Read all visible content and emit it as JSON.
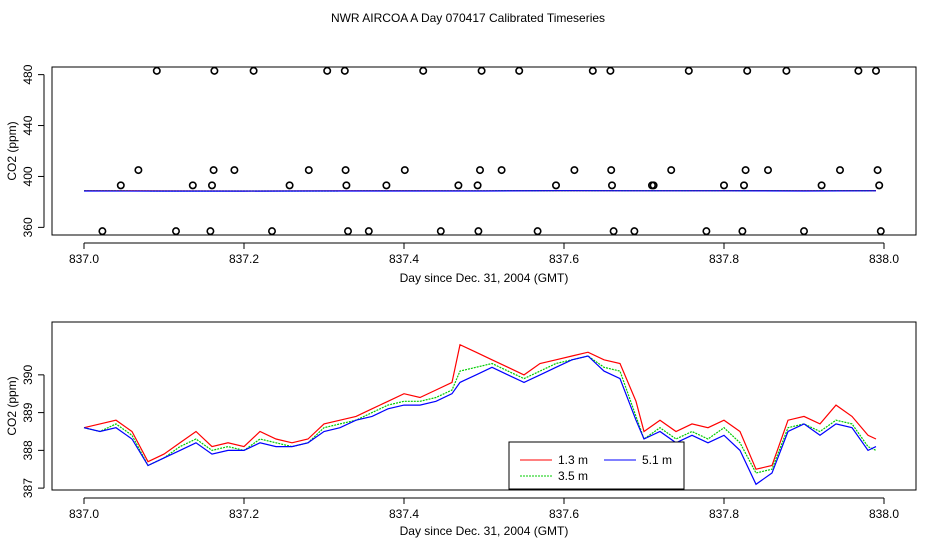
{
  "page_title": "NWR AIRCOA A  Day 070417  Calibrated Timeseries",
  "chart_data": [
    {
      "type": "scatter",
      "title": "NWR AIRCOA A  Day 070417  Calibrated Timeseries",
      "xlabel": "Day since Dec. 31, 2004 (GMT)",
      "ylabel": "CO2 (ppm)",
      "xlim": [
        836.96,
        838.04
      ],
      "ylim": [
        354,
        486
      ],
      "xticks": [
        837.0,
        837.2,
        837.4,
        837.6,
        837.8,
        838.0
      ],
      "xtick_labels": [
        "837.0",
        "837.2",
        "837.4",
        "837.6",
        "837.8",
        "838.0"
      ],
      "yticks": [
        360,
        400,
        440,
        480
      ],
      "ytick_labels": [
        "360",
        "400",
        "440",
        "480"
      ],
      "points": [
        [
          837.023,
          357
        ],
        [
          837.046,
          393
        ],
        [
          837.068,
          405
        ],
        [
          837.091,
          483
        ],
        [
          837.115,
          357
        ],
        [
          837.136,
          393
        ],
        [
          837.158,
          357
        ],
        [
          837.16,
          393
        ],
        [
          837.162,
          405
        ],
        [
          837.163,
          483
        ],
        [
          837.188,
          405
        ],
        [
          837.212,
          483
        ],
        [
          837.235,
          357
        ],
        [
          837.257,
          393
        ],
        [
          837.281,
          405
        ],
        [
          837.304,
          483
        ],
        [
          837.326,
          483
        ],
        [
          837.327,
          405
        ],
        [
          837.328,
          393
        ],
        [
          837.33,
          357
        ],
        [
          837.356,
          357
        ],
        [
          837.378,
          393
        ],
        [
          837.401,
          405
        ],
        [
          837.424,
          483
        ],
        [
          837.446,
          357
        ],
        [
          837.468,
          393
        ],
        [
          837.492,
          393
        ],
        [
          837.493,
          357
        ],
        [
          837.495,
          405
        ],
        [
          837.497,
          483
        ],
        [
          837.522,
          405
        ],
        [
          837.544,
          483
        ],
        [
          837.567,
          357
        ],
        [
          837.59,
          393
        ],
        [
          837.613,
          405
        ],
        [
          837.636,
          483
        ],
        [
          837.658,
          483
        ],
        [
          837.659,
          405
        ],
        [
          837.66,
          393
        ],
        [
          837.662,
          357
        ],
        [
          837.688,
          357
        ],
        [
          837.71,
          393
        ],
        [
          837.712,
          393
        ],
        [
          837.734,
          405
        ],
        [
          837.756,
          483
        ],
        [
          837.778,
          357
        ],
        [
          837.8,
          393
        ],
        [
          837.823,
          357
        ],
        [
          837.825,
          393
        ],
        [
          837.827,
          405
        ],
        [
          837.829,
          483
        ],
        [
          837.855,
          405
        ],
        [
          837.878,
          483
        ],
        [
          837.9,
          357
        ],
        [
          837.922,
          393
        ],
        [
          837.945,
          405
        ],
        [
          837.968,
          483
        ],
        [
          837.99,
          483
        ],
        [
          837.992,
          405
        ],
        [
          837.994,
          393
        ],
        [
          837.996,
          357
        ]
      ],
      "series": [
        {
          "name": "1.3 m",
          "color": "#ff0000",
          "values": [
            388.8,
            388.7,
            388.6,
            388.7,
            388.8,
            388.7,
            388.9,
            388.8,
            388.9,
            388.8,
            388.9
          ]
        },
        {
          "name": "3.5 m",
          "color": "#00cc00",
          "values": [
            388.7,
            388.6,
            388.6,
            388.6,
            388.7,
            388.7,
            388.8,
            388.8,
            388.8,
            388.7,
            388.8
          ]
        },
        {
          "name": "5.1 m",
          "color": "#0000ff",
          "values": [
            388.6,
            388.5,
            388.5,
            388.6,
            388.6,
            388.6,
            388.8,
            388.7,
            388.7,
            388.6,
            388.7
          ]
        }
      ],
      "series_x": [
        837.0,
        837.1,
        837.2,
        837.3,
        837.4,
        837.5,
        837.6,
        837.7,
        837.8,
        837.9,
        837.99
      ]
    },
    {
      "type": "line",
      "title": "",
      "xlabel": "Day since Dec. 31, 2004 (GMT)",
      "ylabel": "CO2 (ppm)",
      "xlim": [
        836.96,
        838.04
      ],
      "ylim": [
        386.95,
        391.4
      ],
      "xticks": [
        837.0,
        837.2,
        837.4,
        837.6,
        837.8,
        838.0
      ],
      "xtick_labels": [
        "837.0",
        "837.2",
        "837.4",
        "837.6",
        "837.8",
        "838.0"
      ],
      "yticks": [
        387,
        388,
        389,
        390
      ],
      "ytick_labels": [
        "387",
        "388",
        "389",
        "390"
      ],
      "legend": {
        "position": "bottom-center",
        "entries": [
          "1.3 m",
          "3.5 m",
          "5.1 m"
        ]
      },
      "x": [
        837.0,
        837.02,
        837.04,
        837.06,
        837.08,
        837.1,
        837.12,
        837.14,
        837.16,
        837.18,
        837.2,
        837.22,
        837.24,
        837.26,
        837.28,
        837.3,
        837.32,
        837.34,
        837.36,
        837.38,
        837.4,
        837.42,
        837.44,
        837.46,
        837.47,
        837.49,
        837.51,
        837.53,
        837.55,
        837.57,
        837.59,
        837.61,
        837.63,
        837.65,
        837.67,
        837.69,
        837.7,
        837.72,
        837.74,
        837.76,
        837.78,
        837.8,
        837.82,
        837.84,
        837.86,
        837.88,
        837.9,
        837.92,
        837.94,
        837.96,
        837.98,
        837.99
      ],
      "series": [
        {
          "name": "1.3 m",
          "color": "#ff0000",
          "values": [
            388.6,
            388.7,
            388.8,
            388.5,
            387.7,
            387.9,
            388.2,
            388.5,
            388.1,
            388.2,
            388.1,
            388.5,
            388.3,
            388.2,
            388.3,
            388.7,
            388.8,
            388.9,
            389.1,
            389.3,
            389.5,
            389.4,
            389.6,
            389.8,
            390.8,
            390.6,
            390.4,
            390.2,
            390.0,
            390.3,
            390.4,
            390.5,
            390.6,
            390.4,
            390.3,
            389.3,
            388.5,
            388.8,
            388.5,
            388.7,
            388.6,
            388.8,
            388.5,
            387.5,
            387.6,
            388.8,
            388.9,
            388.7,
            389.2,
            388.9,
            388.4,
            388.3
          ]
        },
        {
          "name": "3.5 m",
          "color": "#00cc00",
          "values": [
            388.6,
            388.5,
            388.7,
            388.4,
            387.6,
            387.8,
            388.1,
            388.3,
            388.0,
            388.1,
            388.0,
            388.3,
            388.2,
            388.1,
            388.2,
            388.6,
            388.7,
            388.8,
            389.0,
            389.2,
            389.3,
            389.3,
            389.4,
            389.6,
            390.1,
            390.2,
            390.3,
            390.1,
            389.9,
            390.1,
            390.3,
            390.4,
            390.5,
            390.2,
            390.1,
            388.9,
            388.3,
            388.6,
            388.3,
            388.5,
            388.3,
            388.6,
            388.2,
            387.4,
            387.5,
            388.6,
            388.7,
            388.5,
            388.8,
            388.7,
            388.1,
            388.0
          ]
        },
        {
          "name": "5.1 m",
          "color": "#0000ff",
          "values": [
            388.6,
            388.5,
            388.6,
            388.3,
            387.6,
            387.8,
            388.0,
            388.2,
            387.9,
            388.0,
            388.0,
            388.2,
            388.1,
            388.1,
            388.2,
            388.5,
            388.6,
            388.8,
            388.9,
            389.1,
            389.2,
            389.2,
            389.3,
            389.5,
            389.8,
            390.0,
            390.2,
            390.0,
            389.8,
            390.0,
            390.2,
            390.4,
            390.5,
            390.1,
            389.9,
            388.8,
            388.3,
            388.5,
            388.2,
            388.4,
            388.2,
            388.4,
            388.0,
            387.1,
            387.4,
            388.5,
            388.7,
            388.4,
            388.7,
            388.6,
            388.0,
            388.1
          ]
        }
      ]
    }
  ]
}
